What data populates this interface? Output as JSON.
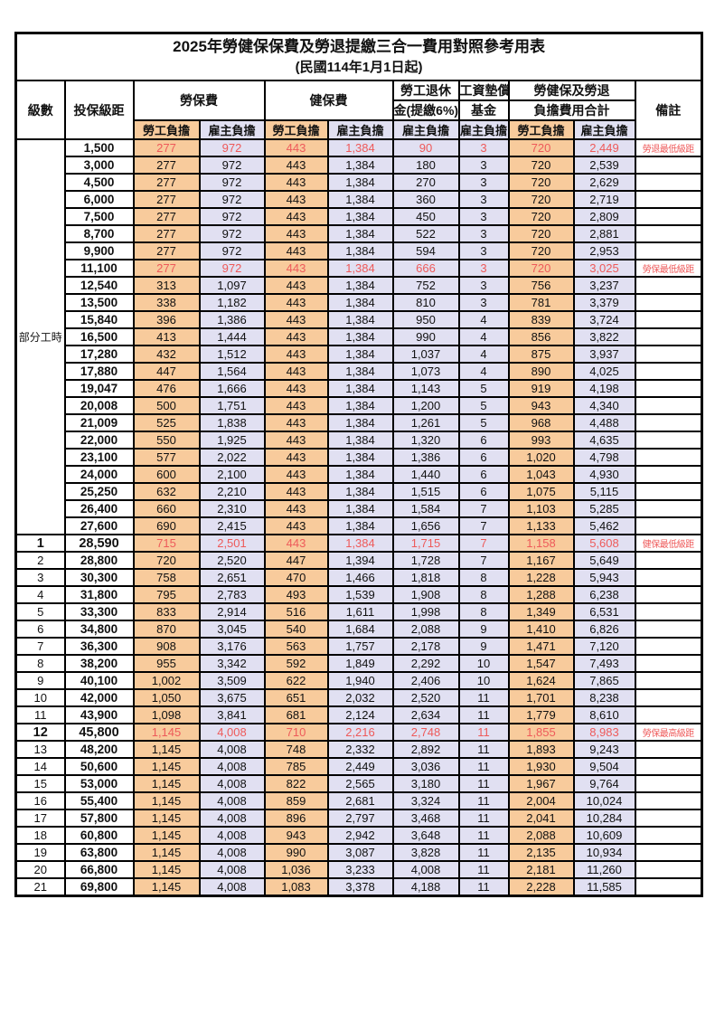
{
  "title": "2025年勞健保保費及勞退提繳三合一費用對照參考用表",
  "subtitle": "(民國114年1月1日起)",
  "header": {
    "level": "級數",
    "bracket": "投保級距",
    "labor_insurance": "勞保費",
    "health_insurance": "健保費",
    "pension_line1": "勞工退休",
    "pension_line2": "金(提繳6%)",
    "wage_fund_line1": "工資墊償",
    "wage_fund_line2": "基金",
    "total_line1": "勞健保及勞退",
    "total_line2": "負擔費用合計",
    "notes": "備註",
    "employee_label": "勞工負擔",
    "employer_label": "雇主負擔"
  },
  "part_time": {
    "label": "部分工時",
    "rowspan": 23
  },
  "colors": {
    "employee_bg": "#f8cb9c",
    "employer_bg": "#e1e0f2",
    "highlight_red": "#ee5a5a",
    "border": "#000000"
  },
  "column_types": [
    "emp",
    "er",
    "emp",
    "er",
    "er",
    "er",
    "emp",
    "er"
  ],
  "rows": [
    {
      "level": null,
      "bracket": "1,500",
      "values": [
        "277",
        "972",
        "443",
        "1,384",
        "90",
        "3",
        "720",
        "2,449"
      ],
      "note": "勞退最低級距",
      "red": true,
      "bold": false
    },
    {
      "level": null,
      "bracket": "3,000",
      "values": [
        "277",
        "972",
        "443",
        "1,384",
        "180",
        "3",
        "720",
        "2,539"
      ],
      "note": "",
      "red": false,
      "bold": false
    },
    {
      "level": null,
      "bracket": "4,500",
      "values": [
        "277",
        "972",
        "443",
        "1,384",
        "270",
        "3",
        "720",
        "2,629"
      ],
      "note": "",
      "red": false,
      "bold": false
    },
    {
      "level": null,
      "bracket": "6,000",
      "values": [
        "277",
        "972",
        "443",
        "1,384",
        "360",
        "3",
        "720",
        "2,719"
      ],
      "note": "",
      "red": false,
      "bold": false
    },
    {
      "level": null,
      "bracket": "7,500",
      "values": [
        "277",
        "972",
        "443",
        "1,384",
        "450",
        "3",
        "720",
        "2,809"
      ],
      "note": "",
      "red": false,
      "bold": false
    },
    {
      "level": null,
      "bracket": "8,700",
      "values": [
        "277",
        "972",
        "443",
        "1,384",
        "522",
        "3",
        "720",
        "2,881"
      ],
      "note": "",
      "red": false,
      "bold": false
    },
    {
      "level": null,
      "bracket": "9,900",
      "values": [
        "277",
        "972",
        "443",
        "1,384",
        "594",
        "3",
        "720",
        "2,953"
      ],
      "note": "",
      "red": false,
      "bold": false
    },
    {
      "level": null,
      "bracket": "11,100",
      "values": [
        "277",
        "972",
        "443",
        "1,384",
        "666",
        "3",
        "720",
        "3,025"
      ],
      "note": "勞保最低級距",
      "red": true,
      "bold": false
    },
    {
      "level": null,
      "bracket": "12,540",
      "values": [
        "313",
        "1,097",
        "443",
        "1,384",
        "752",
        "3",
        "756",
        "3,237"
      ],
      "note": "",
      "red": false,
      "bold": false
    },
    {
      "level": null,
      "bracket": "13,500",
      "values": [
        "338",
        "1,182",
        "443",
        "1,384",
        "810",
        "3",
        "781",
        "3,379"
      ],
      "note": "",
      "red": false,
      "bold": false
    },
    {
      "level": null,
      "bracket": "15,840",
      "values": [
        "396",
        "1,386",
        "443",
        "1,384",
        "950",
        "4",
        "839",
        "3,724"
      ],
      "note": "",
      "red": false,
      "bold": false
    },
    {
      "level": null,
      "bracket": "16,500",
      "values": [
        "413",
        "1,444",
        "443",
        "1,384",
        "990",
        "4",
        "856",
        "3,822"
      ],
      "note": "",
      "red": false,
      "bold": false
    },
    {
      "level": null,
      "bracket": "17,280",
      "values": [
        "432",
        "1,512",
        "443",
        "1,384",
        "1,037",
        "4",
        "875",
        "3,937"
      ],
      "note": "",
      "red": false,
      "bold": false
    },
    {
      "level": null,
      "bracket": "17,880",
      "values": [
        "447",
        "1,564",
        "443",
        "1,384",
        "1,073",
        "4",
        "890",
        "4,025"
      ],
      "note": "",
      "red": false,
      "bold": false
    },
    {
      "level": null,
      "bracket": "19,047",
      "values": [
        "476",
        "1,666",
        "443",
        "1,384",
        "1,143",
        "5",
        "919",
        "4,198"
      ],
      "note": "",
      "red": false,
      "bold": false
    },
    {
      "level": null,
      "bracket": "20,008",
      "values": [
        "500",
        "1,751",
        "443",
        "1,384",
        "1,200",
        "5",
        "943",
        "4,340"
      ],
      "note": "",
      "red": false,
      "bold": false
    },
    {
      "level": null,
      "bracket": "21,009",
      "values": [
        "525",
        "1,838",
        "443",
        "1,384",
        "1,261",
        "5",
        "968",
        "4,488"
      ],
      "note": "",
      "red": false,
      "bold": false
    },
    {
      "level": null,
      "bracket": "22,000",
      "values": [
        "550",
        "1,925",
        "443",
        "1,384",
        "1,320",
        "6",
        "993",
        "4,635"
      ],
      "note": "",
      "red": false,
      "bold": false
    },
    {
      "level": null,
      "bracket": "23,100",
      "values": [
        "577",
        "2,022",
        "443",
        "1,384",
        "1,386",
        "6",
        "1,020",
        "4,798"
      ],
      "note": "",
      "red": false,
      "bold": false
    },
    {
      "level": null,
      "bracket": "24,000",
      "values": [
        "600",
        "2,100",
        "443",
        "1,384",
        "1,440",
        "6",
        "1,043",
        "4,930"
      ],
      "note": "",
      "red": false,
      "bold": false
    },
    {
      "level": null,
      "bracket": "25,250",
      "values": [
        "632",
        "2,210",
        "443",
        "1,384",
        "1,515",
        "6",
        "1,075",
        "5,115"
      ],
      "note": "",
      "red": false,
      "bold": false
    },
    {
      "level": null,
      "bracket": "26,400",
      "values": [
        "660",
        "2,310",
        "443",
        "1,384",
        "1,584",
        "7",
        "1,103",
        "5,285"
      ],
      "note": "",
      "red": false,
      "bold": false
    },
    {
      "level": null,
      "bracket": "27,600",
      "values": [
        "690",
        "2,415",
        "443",
        "1,384",
        "1,656",
        "7",
        "1,133",
        "5,462"
      ],
      "note": "",
      "red": false,
      "bold": false
    },
    {
      "level": "1",
      "bracket": "28,590",
      "values": [
        "715",
        "2,501",
        "443",
        "1,384",
        "1,715",
        "7",
        "1,158",
        "5,608"
      ],
      "note": "健保最低級距",
      "red": true,
      "bold": true
    },
    {
      "level": "2",
      "bracket": "28,800",
      "values": [
        "720",
        "2,520",
        "447",
        "1,394",
        "1,728",
        "7",
        "1,167",
        "5,649"
      ],
      "note": "",
      "red": false,
      "bold": false
    },
    {
      "level": "3",
      "bracket": "30,300",
      "values": [
        "758",
        "2,651",
        "470",
        "1,466",
        "1,818",
        "8",
        "1,228",
        "5,943"
      ],
      "note": "",
      "red": false,
      "bold": false
    },
    {
      "level": "4",
      "bracket": "31,800",
      "values": [
        "795",
        "2,783",
        "493",
        "1,539",
        "1,908",
        "8",
        "1,288",
        "6,238"
      ],
      "note": "",
      "red": false,
      "bold": false
    },
    {
      "level": "5",
      "bracket": "33,300",
      "values": [
        "833",
        "2,914",
        "516",
        "1,611",
        "1,998",
        "8",
        "1,349",
        "6,531"
      ],
      "note": "",
      "red": false,
      "bold": false
    },
    {
      "level": "6",
      "bracket": "34,800",
      "values": [
        "870",
        "3,045",
        "540",
        "1,684",
        "2,088",
        "9",
        "1,410",
        "6,826"
      ],
      "note": "",
      "red": false,
      "bold": false
    },
    {
      "level": "7",
      "bracket": "36,300",
      "values": [
        "908",
        "3,176",
        "563",
        "1,757",
        "2,178",
        "9",
        "1,471",
        "7,120"
      ],
      "note": "",
      "red": false,
      "bold": false
    },
    {
      "level": "8",
      "bracket": "38,200",
      "values": [
        "955",
        "3,342",
        "592",
        "1,849",
        "2,292",
        "10",
        "1,547",
        "7,493"
      ],
      "note": "",
      "red": false,
      "bold": false
    },
    {
      "level": "9",
      "bracket": "40,100",
      "values": [
        "1,002",
        "3,509",
        "622",
        "1,940",
        "2,406",
        "10",
        "1,624",
        "7,865"
      ],
      "note": "",
      "red": false,
      "bold": false
    },
    {
      "level": "10",
      "bracket": "42,000",
      "values": [
        "1,050",
        "3,675",
        "651",
        "2,032",
        "2,520",
        "11",
        "1,701",
        "8,238"
      ],
      "note": "",
      "red": false,
      "bold": false
    },
    {
      "level": "11",
      "bracket": "43,900",
      "values": [
        "1,098",
        "3,841",
        "681",
        "2,124",
        "2,634",
        "11",
        "1,779",
        "8,610"
      ],
      "note": "",
      "red": false,
      "bold": false
    },
    {
      "level": "12",
      "bracket": "45,800",
      "values": [
        "1,145",
        "4,008",
        "710",
        "2,216",
        "2,748",
        "11",
        "1,855",
        "8,983"
      ],
      "note": "勞保最高級距",
      "red": true,
      "bold": true
    },
    {
      "level": "13",
      "bracket": "48,200",
      "values": [
        "1,145",
        "4,008",
        "748",
        "2,332",
        "2,892",
        "11",
        "1,893",
        "9,243"
      ],
      "note": "",
      "red": false,
      "bold": false
    },
    {
      "level": "14",
      "bracket": "50,600",
      "values": [
        "1,145",
        "4,008",
        "785",
        "2,449",
        "3,036",
        "11",
        "1,930",
        "9,504"
      ],
      "note": "",
      "red": false,
      "bold": false
    },
    {
      "level": "15",
      "bracket": "53,000",
      "values": [
        "1,145",
        "4,008",
        "822",
        "2,565",
        "3,180",
        "11",
        "1,967",
        "9,764"
      ],
      "note": "",
      "red": false,
      "bold": false
    },
    {
      "level": "16",
      "bracket": "55,400",
      "values": [
        "1,145",
        "4,008",
        "859",
        "2,681",
        "3,324",
        "11",
        "2,004",
        "10,024"
      ],
      "note": "",
      "red": false,
      "bold": false
    },
    {
      "level": "17",
      "bracket": "57,800",
      "values": [
        "1,145",
        "4,008",
        "896",
        "2,797",
        "3,468",
        "11",
        "2,041",
        "10,284"
      ],
      "note": "",
      "red": false,
      "bold": false
    },
    {
      "level": "18",
      "bracket": "60,800",
      "values": [
        "1,145",
        "4,008",
        "943",
        "2,942",
        "3,648",
        "11",
        "2,088",
        "10,609"
      ],
      "note": "",
      "red": false,
      "bold": false
    },
    {
      "level": "19",
      "bracket": "63,800",
      "values": [
        "1,145",
        "4,008",
        "990",
        "3,087",
        "3,828",
        "11",
        "2,135",
        "10,934"
      ],
      "note": "",
      "red": false,
      "bold": false
    },
    {
      "level": "20",
      "bracket": "66,800",
      "values": [
        "1,145",
        "4,008",
        "1,036",
        "3,233",
        "4,008",
        "11",
        "2,181",
        "11,260"
      ],
      "note": "",
      "red": false,
      "bold": false
    },
    {
      "level": "21",
      "bracket": "69,800",
      "values": [
        "1,145",
        "4,008",
        "1,083",
        "3,378",
        "4,188",
        "11",
        "2,228",
        "11,585"
      ],
      "note": "",
      "red": false,
      "bold": false
    }
  ]
}
